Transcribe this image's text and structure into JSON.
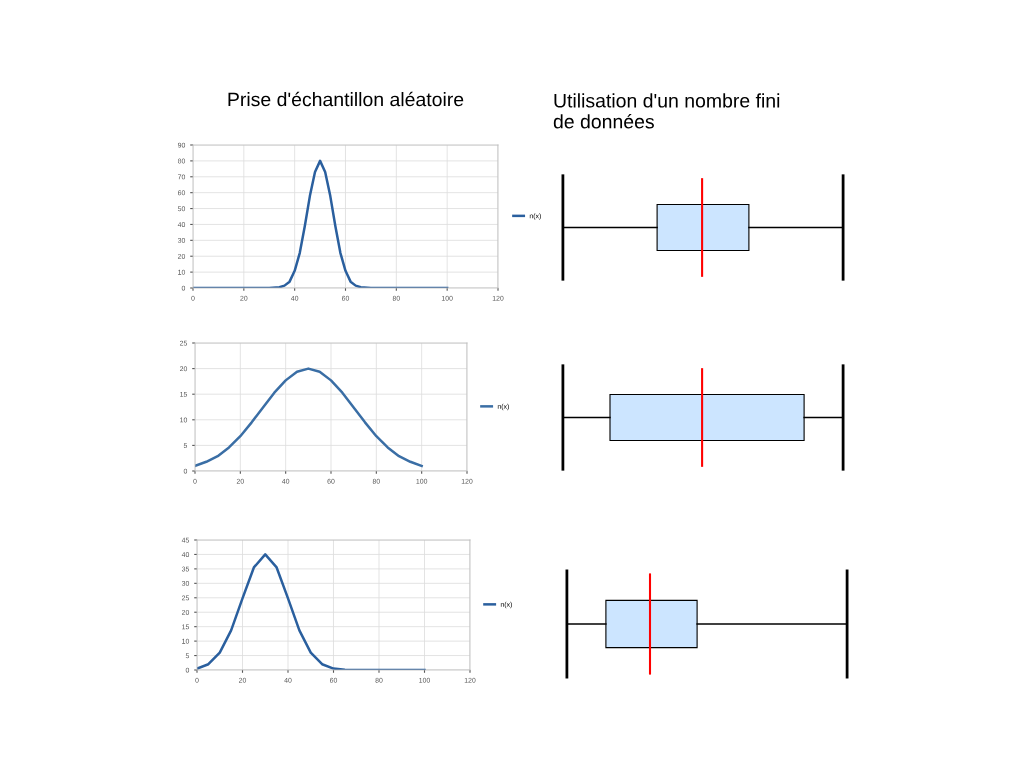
{
  "chart_data": [
    {
      "type": "line",
      "title": "Prise d'échantillon aléatoire",
      "x": [
        0,
        10,
        20,
        30,
        34,
        36,
        38,
        40,
        42,
        44,
        46,
        48,
        50,
        52,
        54,
        56,
        58,
        60,
        62,
        64,
        66,
        70,
        80,
        90,
        100
      ],
      "series": [
        {
          "name": "n(x)",
          "color": "#2a5f9e",
          "values": [
            0,
            0,
            0,
            0,
            0.5,
            1.5,
            4,
            10.8,
            22,
            39,
            58,
            73,
            80,
            73,
            58,
            39,
            22,
            10.8,
            4,
            1.5,
            0.5,
            0,
            0,
            0,
            0
          ]
        }
      ],
      "xlim": [
        0,
        120
      ],
      "xticks": [
        0,
        20,
        40,
        60,
        80,
        100,
        120
      ],
      "ylim": [
        0,
        90
      ],
      "yticks": [
        0,
        10,
        20,
        30,
        40,
        50,
        60,
        70,
        80,
        90
      ],
      "grid": true,
      "legend": "right",
      "marker": "none",
      "line_style": "solid"
    },
    {
      "type": "other",
      "title": "Utilisation d'un nombre fini\nde données"
    },
    {
      "type": "line",
      "x": [
        0,
        5,
        10,
        15,
        20,
        25,
        30,
        35,
        40,
        45,
        50,
        55,
        60,
        65,
        70,
        75,
        80,
        85,
        90,
        95,
        100
      ],
      "series": [
        {
          "name": "n(x)",
          "color": "#3a6ea5",
          "values": [
            1,
            1.8,
            2.9,
            4.6,
            6.8,
            9.5,
            12.4,
            15.3,
            17.7,
            19.4,
            20,
            19.4,
            17.7,
            15.3,
            12.4,
            9.5,
            6.8,
            4.6,
            2.9,
            1.8,
            1
          ]
        }
      ],
      "xlim": [
        0,
        120
      ],
      "xticks": [
        0,
        20,
        40,
        60,
        80,
        100,
        120
      ],
      "ylim": [
        0,
        25
      ],
      "yticks": [
        0,
        5,
        10,
        15,
        20,
        25
      ],
      "grid": true,
      "legend": "right",
      "marker": "none",
      "line_style": "solid"
    },
    {
      "type": "other"
    },
    {
      "type": "line",
      "x": [
        0,
        5,
        10,
        15,
        20,
        25,
        30,
        35,
        40,
        45,
        50,
        55,
        60,
        65,
        70,
        80,
        90,
        100
      ],
      "series": [
        {
          "name": "n(x)",
          "color": "#2a5f9e",
          "values": [
            0.5,
            2,
            6,
            13.7,
            24.8,
            35.5,
            40,
            35.5,
            24.8,
            13.7,
            6,
            2,
            0.5,
            0.1,
            0,
            0,
            0,
            0
          ]
        }
      ],
      "xlim": [
        0,
        120
      ],
      "xticks": [
        0,
        20,
        40,
        60,
        80,
        100,
        120
      ],
      "ylim": [
        0,
        45
      ],
      "yticks": [
        0,
        5,
        10,
        15,
        20,
        25,
        30,
        35,
        40,
        45
      ],
      "grid": true,
      "legend": "right",
      "marker": "none",
      "line_style": "solid"
    },
    {
      "type": "other"
    }
  ]
}
